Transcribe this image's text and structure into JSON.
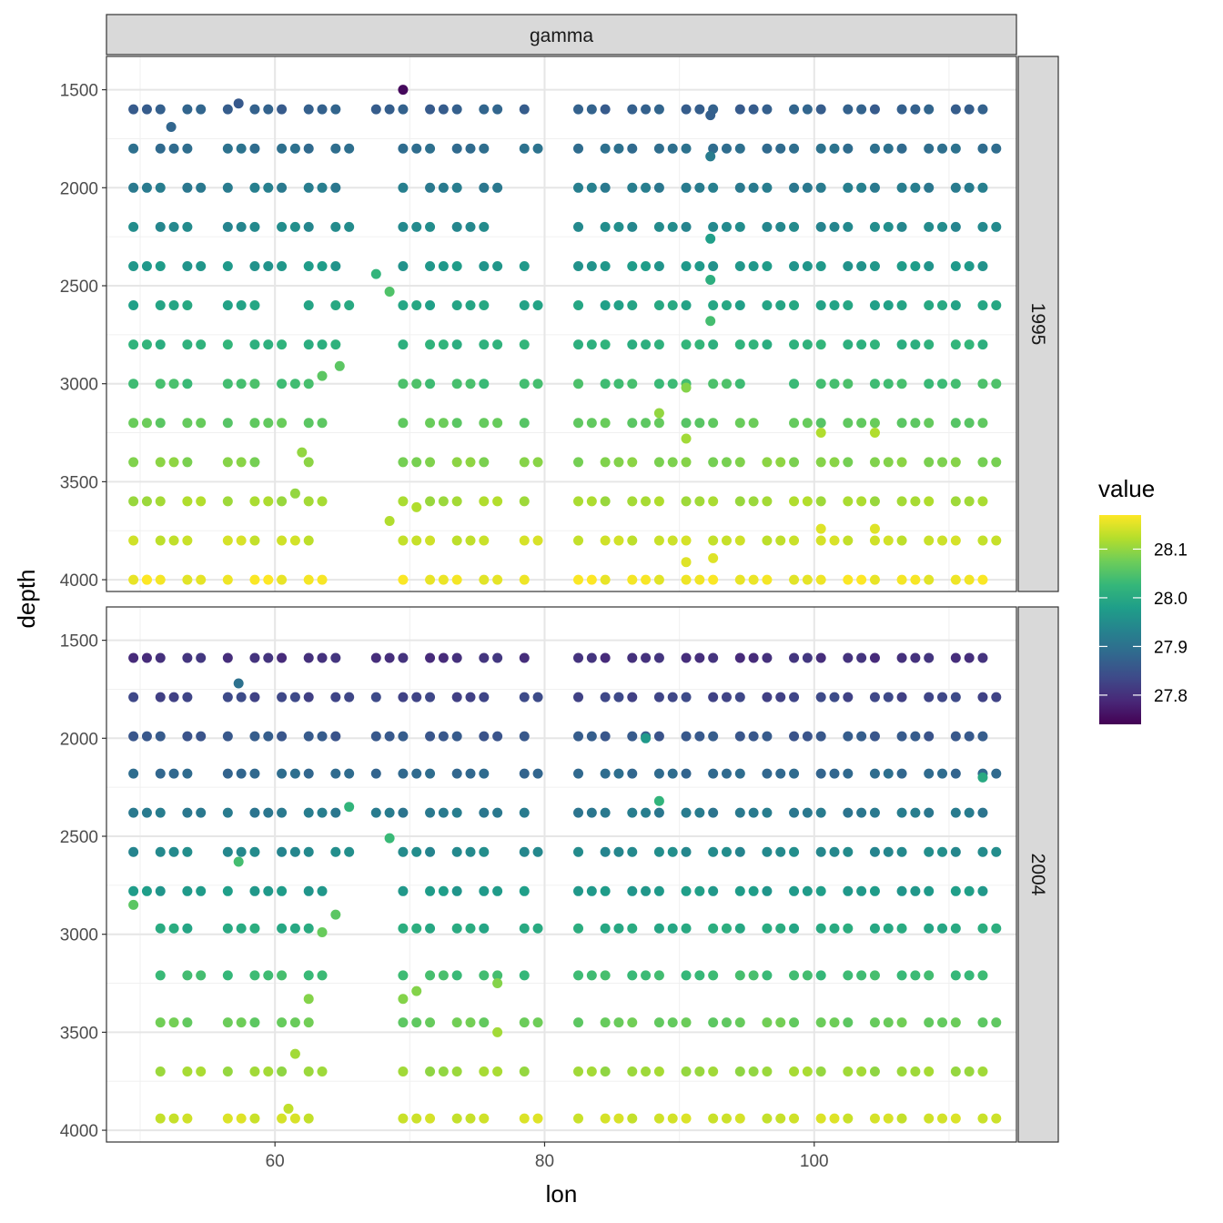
{
  "chart_data": {
    "type": "scatter",
    "facet_column_label": "gamma",
    "xlabel": "lon",
    "ylabel": "depth",
    "xlim": [
      47.5,
      115.0
    ],
    "ylim": [
      1330,
      4060
    ],
    "y_reversed": true,
    "x_ticks": [
      60,
      80,
      100
    ],
    "y_ticks": [
      1500,
      2000,
      2500,
      3000,
      3500,
      4000
    ],
    "grid": true,
    "legend": {
      "title": "value",
      "placement": "right",
      "type": "colorbar",
      "palette": "viridis",
      "min": 27.74,
      "max": 28.17,
      "ticks": [
        27.8,
        27.9,
        28.0,
        28.1
      ],
      "tick_labels": [
        "27.8",
        "27.9",
        "28.0",
        "28.1"
      ]
    },
    "panels": [
      {
        "label": "1995",
        "lons": [
          49.5,
          51.5,
          53.5,
          56.5,
          58.5,
          60.5,
          62.5,
          64.5,
          67.5,
          69.5,
          71.5,
          73.5,
          75.5,
          78.5,
          82.5,
          84.5,
          86.5,
          88.5,
          90.5,
          92.5,
          94.5,
          96.5,
          98.5,
          100.5,
          102.5,
          104.5,
          106.5,
          108.5,
          110.5,
          112.5
        ],
        "depth_levels": [
          1600,
          1800,
          2000,
          2200,
          2400,
          2600,
          2800,
          3000,
          3200,
          3400,
          3600,
          3800,
          4000
        ],
        "points": [
          {
            "lon": 69.5,
            "depth": 1500,
            "value": 27.75
          },
          {
            "lon": 52.3,
            "depth": 1690,
            "value": 27.88
          },
          {
            "lon": 57.3,
            "depth": 1570,
            "value": 27.86
          },
          {
            "lon": 92.3,
            "depth": 1630,
            "value": 27.87
          },
          {
            "lon": 92.3,
            "depth": 1840,
            "value": 27.92
          },
          {
            "lon": 92.3,
            "depth": 2260,
            "value": 27.98
          },
          {
            "lon": 92.3,
            "depth": 2470,
            "value": 28.01
          },
          {
            "lon": 92.3,
            "depth": 2680,
            "value": 28.04
          },
          {
            "lon": 67.5,
            "depth": 2440,
            "value": 28.02
          },
          {
            "lon": 68.5,
            "depth": 2530,
            "value": 28.05
          },
          {
            "lon": 64.8,
            "depth": 2910,
            "value": 28.06
          },
          {
            "lon": 63.5,
            "depth": 2960,
            "value": 28.06
          },
          {
            "lon": 62.0,
            "depth": 3350,
            "value": 28.1
          },
          {
            "lon": 61.5,
            "depth": 3560,
            "value": 28.1
          },
          {
            "lon": 68.5,
            "depth": 3700,
            "value": 28.12
          },
          {
            "lon": 70.5,
            "depth": 3630,
            "value": 28.12
          },
          {
            "lon": 90.5,
            "depth": 3020,
            "value": 28.09
          },
          {
            "lon": 88.5,
            "depth": 3150,
            "value": 28.1
          },
          {
            "lon": 90.5,
            "depth": 3280,
            "value": 28.11
          },
          {
            "lon": 90.5,
            "depth": 3910,
            "value": 28.15
          },
          {
            "lon": 92.5,
            "depth": 3890,
            "value": 28.15
          },
          {
            "lon": 100.5,
            "depth": 3250,
            "value": 28.12
          },
          {
            "lon": 104.5,
            "depth": 3250,
            "value": 28.12
          },
          {
            "lon": 100.5,
            "depth": 3740,
            "value": 28.15
          },
          {
            "lon": 104.5,
            "depth": 3740,
            "value": 28.15
          },
          {
            "lon": 50.5,
            "depth": 4000,
            "value": 28.17
          }
        ]
      },
      {
        "label": "2004",
        "lons": [
          49.5,
          51.5,
          53.5,
          56.5,
          58.5,
          60.5,
          62.5,
          64.5,
          67.5,
          69.5,
          71.5,
          73.5,
          75.5,
          78.5,
          82.5,
          84.5,
          86.5,
          88.5,
          90.5,
          92.5,
          94.5,
          96.5,
          98.5,
          100.5,
          102.5,
          104.5,
          106.5,
          108.5,
          110.5,
          112.5
        ],
        "depth_levels": [
          1590,
          1790,
          1990,
          2180,
          2380,
          2580,
          2780,
          2970,
          3210,
          3450,
          3700,
          3940
        ],
        "points": [
          {
            "lon": 57.3,
            "depth": 1720,
            "value": 27.9
          },
          {
            "lon": 87.5,
            "depth": 2000,
            "value": 27.97
          },
          {
            "lon": 112.5,
            "depth": 2200,
            "value": 28.0
          },
          {
            "lon": 65.5,
            "depth": 2350,
            "value": 28.02
          },
          {
            "lon": 88.5,
            "depth": 2320,
            "value": 28.02
          },
          {
            "lon": 68.5,
            "depth": 2510,
            "value": 28.03
          },
          {
            "lon": 57.3,
            "depth": 2630,
            "value": 28.04
          },
          {
            "lon": 49.5,
            "depth": 2850,
            "value": 28.06
          },
          {
            "lon": 64.5,
            "depth": 2900,
            "value": 28.06
          },
          {
            "lon": 63.5,
            "depth": 2990,
            "value": 28.07
          },
          {
            "lon": 62.5,
            "depth": 3330,
            "value": 28.09
          },
          {
            "lon": 69.5,
            "depth": 3330,
            "value": 28.09
          },
          {
            "lon": 70.5,
            "depth": 3290,
            "value": 28.09
          },
          {
            "lon": 76.5,
            "depth": 3250,
            "value": 28.09
          },
          {
            "lon": 76.5,
            "depth": 3500,
            "value": 28.11
          },
          {
            "lon": 61.5,
            "depth": 3610,
            "value": 28.11
          },
          {
            "lon": 61.0,
            "depth": 3890,
            "value": 28.13
          }
        ]
      }
    ]
  }
}
